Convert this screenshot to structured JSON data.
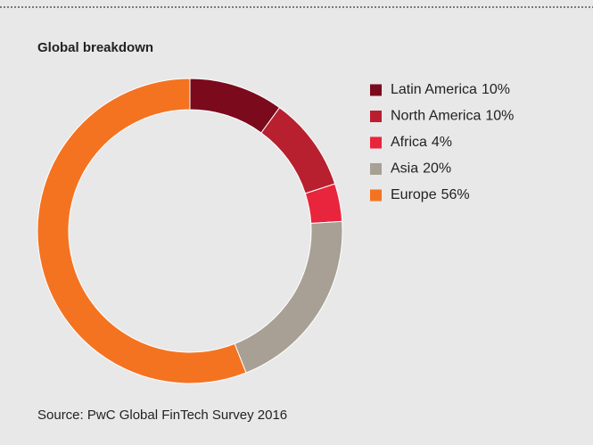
{
  "chart_data": {
    "type": "donut",
    "title": "Global breakdown",
    "categories": [
      "Latin America",
      "North America",
      "Africa",
      "Asia",
      "Europe"
    ],
    "values": [
      10,
      10,
      4,
      20,
      56
    ],
    "value_labels": [
      "10%",
      "10%",
      "4%",
      "20%",
      "56%"
    ],
    "colors": [
      "#7b0a1c",
      "#b8202f",
      "#e8253c",
      "#a8a095",
      "#f47321"
    ],
    "source": "Source: PwC Global FinTech Survey 2016"
  }
}
